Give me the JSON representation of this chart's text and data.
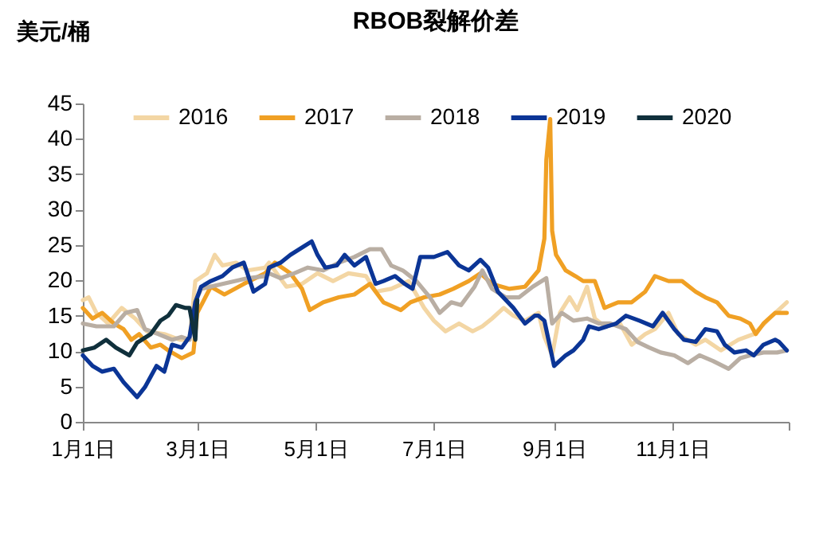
{
  "chart_data": {
    "type": "line",
    "title": "RBOB裂解价差",
    "ylabel": "美元/桶",
    "legend": "top",
    "line_style": "solid",
    "marker": "none",
    "grid": false,
    "xlim": [
      "--01-01",
      "--12-31"
    ],
    "xticks": [
      {
        "value": "--01-01",
        "label": "1月1日"
      },
      {
        "value": "--03-01",
        "label": "3月1日"
      },
      {
        "value": "--05-01",
        "label": "5月1日"
      },
      {
        "value": "--07-01",
        "label": "7月1日"
      },
      {
        "value": "--09-01",
        "label": "9月1日"
      },
      {
        "value": "--11-01",
        "label": "11月1日"
      },
      {
        "value": "--12-31",
        "label": null
      }
    ],
    "ylim": [
      0,
      45
    ],
    "yticks": [
      0,
      5,
      10,
      15,
      20,
      25,
      30,
      35,
      40,
      45
    ],
    "series": [
      {
        "name": "2016",
        "color": "#f3d6a4",
        "x": [
          "--01-01",
          "--01-04",
          "--01-08",
          "--01-14",
          "--01-21",
          "--01-28",
          "--02-03",
          "--02-12",
          "--02-20",
          "--02-25",
          "--02-28",
          "--03-06",
          "--03-10",
          "--03-14",
          "--03-21",
          "--03-27",
          "--04-05",
          "--04-07",
          "--04-16",
          "--04-24",
          "--05-02",
          "--05-10",
          "--05-18",
          "--05-27",
          "--06-01",
          "--06-09",
          "--06-18",
          "--06-26",
          "--07-01",
          "--07-07",
          "--07-14",
          "--07-21",
          "--07-26",
          "--07-31",
          "--08-06",
          "--08-11",
          "--08-17",
          "--08-24",
          "--08-27",
          "--08-31",
          "--09-04",
          "--09-09",
          "--09-13",
          "--09-18",
          "--09-22",
          "--09-27",
          "--10-05",
          "--10-11",
          "--10-18",
          "--10-23",
          "--10-30",
          "--11-04",
          "--11-13",
          "--11-18",
          "--11-26",
          "--12-05",
          "--12-13",
          "--12-21",
          "--12-30"
        ],
        "values": [
          17.2,
          17.6,
          15.4,
          13.9,
          16.1,
          14.6,
          12.8,
          12.4,
          11.6,
          11.6,
          19.9,
          21,
          23.6,
          22.1,
          22.5,
          21.4,
          21.8,
          22.5,
          19.1,
          19.5,
          21,
          19.9,
          21,
          20.6,
          18.4,
          18.8,
          19.9,
          16.1,
          14.3,
          12.8,
          13.9,
          12.8,
          13.5,
          14.6,
          16.1,
          15,
          14.3,
          15.4,
          12,
          9.4,
          15.4,
          17.6,
          15.8,
          19.1,
          14.6,
          13.5,
          13.9,
          10.9,
          12.4,
          13.1,
          15.4,
          12.4,
          10.9,
          11.6,
          10.1,
          11.6,
          12.4,
          14.6,
          16.9
        ]
      },
      {
        "name": "2017",
        "color": "#f0a024",
        "x": [
          "--01-01",
          "--01-06",
          "--01-11",
          "--01-17",
          "--01-22",
          "--01-26",
          "--01-30",
          "--02-05",
          "--02-10",
          "--02-14",
          "--02-21",
          "--02-27",
          "--03-01",
          "--03-08",
          "--03-15",
          "--03-25",
          "--04-05",
          "--04-10",
          "--04-18",
          "--04-24",
          "--04-28",
          "--05-05",
          "--05-13",
          "--05-21",
          "--05-29",
          "--06-05",
          "--06-14",
          "--06-19",
          "--06-26",
          "--07-04",
          "--07-11",
          "--07-19",
          "--07-25",
          "--07-31",
          "--08-09",
          "--08-17",
          "--08-24",
          "--08-27",
          "--08-28",
          "--08-30",
          "--08-31",
          "--09-02",
          "--09-07",
          "--09-12",
          "--09-16",
          "--09-22",
          "--09-27",
          "--10-04",
          "--10-11",
          "--10-18",
          "--10-23",
          "--10-30",
          "--11-06",
          "--11-13",
          "--11-18",
          "--11-24",
          "--11-30",
          "--12-06",
          "--12-11",
          "--12-14",
          "--12-18",
          "--12-24",
          "--12-30"
        ],
        "values": [
          16.1,
          14.6,
          15.4,
          13.9,
          13.1,
          11.6,
          12.4,
          10.5,
          10.9,
          10.1,
          9,
          9.8,
          15.4,
          19.1,
          18,
          19.5,
          21,
          22.5,
          21,
          18.8,
          15.8,
          16.9,
          17.6,
          18,
          19.5,
          16.9,
          15.8,
          16.9,
          17.6,
          18,
          18.8,
          19.9,
          21,
          19.5,
          18.8,
          19.1,
          21.4,
          25.9,
          37,
          42.8,
          27,
          23.6,
          21.4,
          20.6,
          19.9,
          19.9,
          16.1,
          16.9,
          16.9,
          18.4,
          20.6,
          19.9,
          19.9,
          18.4,
          17.6,
          16.9,
          15,
          14.6,
          13.9,
          12.4,
          13.9,
          15.4,
          15.4
        ]
      },
      {
        "name": "2018",
        "color": "#b9aea3",
        "x": [
          "--01-01",
          "--01-08",
          "--01-17",
          "--01-23",
          "--01-29",
          "--02-02",
          "--02-09",
          "--02-16",
          "--02-21",
          "--02-25",
          "--02-28",
          "--03-03",
          "--03-14",
          "--03-27",
          "--04-05",
          "--04-07",
          "--04-13",
          "--04-20",
          "--04-27",
          "--05-05",
          "--05-13",
          "--05-21",
          "--05-29",
          "--06-04",
          "--06-09",
          "--06-15",
          "--06-22",
          "--06-29",
          "--07-04",
          "--07-10",
          "--07-15",
          "--07-22",
          "--07-26",
          "--07-31",
          "--08-07",
          "--08-14",
          "--08-21",
          "--08-28",
          "--08-31",
          "--09-05",
          "--09-11",
          "--09-18",
          "--09-24",
          "--09-30",
          "--10-08",
          "--10-14",
          "--10-20",
          "--10-26",
          "--11-02",
          "--11-09",
          "--11-15",
          "--11-22",
          "--11-30",
          "--12-06",
          "--12-11",
          "--12-18",
          "--12-25",
          "--12-30"
        ],
        "values": [
          13.9,
          13.5,
          13.5,
          15.4,
          15.8,
          13.1,
          12.4,
          11.6,
          12,
          11.6,
          16.9,
          18.8,
          19.5,
          20.3,
          20.6,
          21,
          20.3,
          21,
          21.8,
          21.4,
          22.5,
          23.3,
          24.4,
          24.4,
          22.1,
          21.4,
          19.9,
          17.6,
          15.4,
          16.9,
          16.5,
          19.1,
          21.4,
          18.8,
          17.6,
          17.6,
          19.1,
          20.3,
          13.9,
          15.4,
          14.3,
          14.6,
          13.9,
          13.9,
          13.1,
          11.3,
          10.5,
          9.8,
          9.4,
          8.3,
          9.4,
          8.6,
          7.5,
          9,
          9.4,
          9.8,
          9.8,
          10.1
        ]
      },
      {
        "name": "2019",
        "color": "#0b3596",
        "x": [
          "--01-01",
          "--01-06",
          "--01-11",
          "--01-17",
          "--01-22",
          "--01-29",
          "--02-02",
          "--02-08",
          "--02-12",
          "--02-16",
          "--02-21",
          "--02-25",
          "--02-28",
          "--03-03",
          "--03-08",
          "--03-14",
          "--03-19",
          "--03-25",
          "--03-30",
          "--04-05",
          "--04-07",
          "--04-13",
          "--04-18",
          "--04-25",
          "--04-29",
          "--05-02",
          "--05-06",
          "--05-12",
          "--05-16",
          "--05-21",
          "--05-27",
          "--06-01",
          "--06-05",
          "--06-11",
          "--06-16",
          "--06-20",
          "--06-24",
          "--07-01",
          "--07-08",
          "--07-14",
          "--07-19",
          "--07-25",
          "--07-29",
          "--08-03",
          "--08-11",
          "--08-17",
          "--08-22",
          "--08-24",
          "--08-27",
          "--09-01",
          "--09-07",
          "--09-11",
          "--09-16",
          "--09-19",
          "--09-24",
          "--10-03",
          "--10-08",
          "--10-15",
          "--10-22",
          "--10-27",
          "--11-02",
          "--11-07",
          "--11-13",
          "--11-18",
          "--11-24",
          "--11-28",
          "--12-03",
          "--12-09",
          "--12-13",
          "--12-18",
          "--12-24",
          "--12-26",
          "--12-30"
        ],
        "values": [
          9.4,
          7.9,
          7.1,
          7.5,
          5.6,
          3.5,
          4.9,
          7.9,
          7.1,
          10.9,
          10.5,
          12,
          16.9,
          19.1,
          19.9,
          20.6,
          21.8,
          22.5,
          18.4,
          19.5,
          21.8,
          22.5,
          23.6,
          24.8,
          25.5,
          23.6,
          21.8,
          22.1,
          23.6,
          22.1,
          23.3,
          19.5,
          19.9,
          20.6,
          19.5,
          18.8,
          23.3,
          23.3,
          24,
          22.1,
          21.4,
          22.9,
          21.8,
          18.4,
          16.1,
          13.9,
          15,
          15,
          14.3,
          7.9,
          9.4,
          10.1,
          11.6,
          13.5,
          13.1,
          13.9,
          15,
          14.3,
          13.5,
          15.4,
          13.1,
          11.6,
          11.3,
          13.1,
          12.8,
          10.9,
          9.8,
          10.1,
          9.4,
          10.9,
          11.6,
          11.3,
          10.1
        ]
      },
      {
        "name": "2020",
        "color": "#10303c",
        "x": [
          "--01-01",
          "--01-07",
          "--01-13",
          "--01-18",
          "--01-25",
          "--01-29",
          "--02-05",
          "--02-10",
          "--02-14",
          "--02-18",
          "--02-23",
          "--02-25",
          "--02-28",
          "--03-01"
        ],
        "values": [
          10.1,
          10.5,
          11.6,
          10.5,
          9.4,
          11.2,
          12.4,
          14.3,
          15,
          16.5,
          16.1,
          16.1,
          11.6,
          17.2
        ]
      }
    ]
  }
}
